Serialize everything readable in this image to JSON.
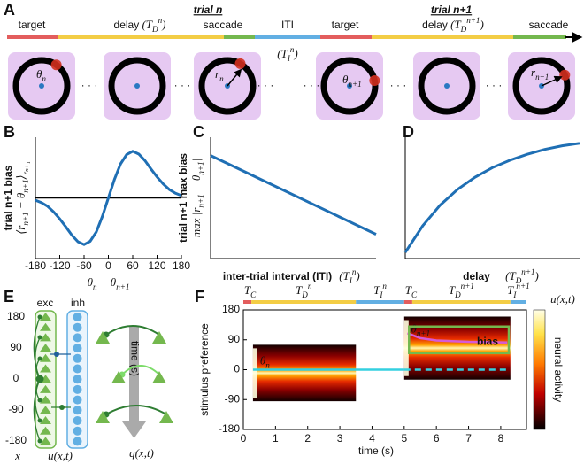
{
  "panel_labels": {
    "a": "A",
    "b": "B",
    "c": "C",
    "d": "D",
    "e": "E",
    "f": "F"
  },
  "panel_a": {
    "trial_labels": [
      "trial n",
      "trial n+1"
    ],
    "segments": [
      {
        "label": "target",
        "color": "#e35d5d"
      },
      {
        "label": "delay",
        "math": [
          {
            "t": " (T",
            "sub": "D",
            "sup": "n"
          },
          {
            "t": ")"
          }
        ],
        "color": "#f3cd45"
      },
      {
        "label": "saccade",
        "color": "#74b84e"
      },
      {
        "label": "ITI",
        "math_below": [
          {
            "t": "(T",
            "sub": "I",
            "sup": "n"
          },
          {
            "t": ")"
          }
        ],
        "color": "#62afe3"
      },
      {
        "label": "target",
        "color": "#e35d5d"
      },
      {
        "label": "delay",
        "math": [
          {
            "t": " (T",
            "sub": "D",
            "sup": "n+1"
          },
          {
            "t": ")"
          }
        ],
        "color": "#f3cd45"
      },
      {
        "label": "saccade",
        "color": "#74b84e"
      }
    ],
    "ellipsis": "· · ·",
    "theta_n": [
      {
        "t": "θ",
        "sub": "n"
      }
    ],
    "r_n": [
      {
        "t": "r",
        "sub": "n"
      }
    ],
    "theta_n1": [
      {
        "t": "θ",
        "sub": "n+1"
      }
    ],
    "r_n1": [
      {
        "t": "r",
        "sub": "n+1"
      }
    ]
  },
  "charts": {
    "b": {
      "type": "line",
      "ylabel": "trial n+1 bias",
      "ylabel_math": [
        {
          "t": "⟨r",
          "sub": "n+1"
        },
        {
          "t": " − θ",
          "sub": "n+1"
        },
        {
          "t": "⟩",
          "sub": "rₙ₊₁"
        }
      ],
      "xlabel_math": [
        {
          "t": "θ",
          "sub": "n"
        },
        {
          "t": " − θ",
          "sub": "n+1"
        }
      ],
      "x": [
        -180,
        -165,
        -150,
        -135,
        -120,
        -105,
        -90,
        -75,
        -60,
        -45,
        -30,
        -15,
        0,
        15,
        30,
        45,
        60,
        75,
        90,
        105,
        120,
        135,
        150,
        165,
        180
      ],
      "values": [
        -0.05,
        -0.1,
        -0.18,
        -0.3,
        -0.45,
        -0.62,
        -0.8,
        -0.94,
        -1,
        -0.93,
        -0.73,
        -0.4,
        0,
        0.4,
        0.73,
        0.93,
        1,
        0.94,
        0.8,
        0.62,
        0.45,
        0.3,
        0.18,
        0.1,
        0.05
      ],
      "color": "#1f6fb4",
      "xlim": [
        -180,
        180
      ],
      "ylim": [
        -1.3,
        1.3
      ],
      "xticks": [
        -180,
        -120,
        -60,
        0,
        60,
        120,
        180
      ]
    },
    "c": {
      "type": "line",
      "ylabel": "trial n+1 max bias",
      "ylabel_math": [
        {
          "t": "max |r",
          "sub": "n+1"
        },
        {
          "t": " − θ",
          "sub": "n+1"
        },
        {
          "t": "|"
        }
      ],
      "xlabel": "inter-trial interval (ITI)",
      "xlabel_math": [
        {
          "t": "(T",
          "sub": "I",
          "sup": "n"
        },
        {
          "t": ")"
        }
      ],
      "x": [
        0,
        1
      ],
      "values": [
        0.85,
        0.2
      ],
      "color": "#1f6fb4",
      "xlim": [
        0,
        1
      ],
      "ylim": [
        0,
        1
      ]
    },
    "d": {
      "type": "line",
      "xlabel": "delay",
      "xlabel_math": [
        {
          "t": "(T",
          "sub": "D",
          "sup": "n+1"
        },
        {
          "t": ")"
        }
      ],
      "x": [
        0,
        0.1,
        0.2,
        0.3,
        0.4,
        0.5,
        0.6,
        0.7,
        0.8,
        0.9,
        1
      ],
      "values": [
        0.05,
        0.27,
        0.44,
        0.57,
        0.67,
        0.75,
        0.81,
        0.86,
        0.9,
        0.93,
        0.95
      ],
      "color": "#1f6fb4",
      "xlim": [
        0,
        1
      ],
      "ylim": [
        0,
        1
      ]
    }
  },
  "panel_e": {
    "exc": "exc",
    "inh": "inh",
    "yticks": [
      180,
      90,
      0,
      -90,
      -180
    ],
    "x_label": "x",
    "u_label": "u(x,t)",
    "time_label": "time (s)",
    "q_label": "q(x,t)"
  },
  "panel_f": {
    "xlim": [
      0,
      8.8
    ],
    "ylim": [
      -180,
      180
    ],
    "xticks": [
      0,
      1,
      2,
      3,
      4,
      5,
      6,
      7,
      8
    ],
    "yticks": [
      180,
      90,
      0,
      -90,
      -180
    ],
    "xlabel": "time (s)",
    "ylabel": "stimulus preference",
    "colorbar_label": "neural activity",
    "colorbar_math": [
      {
        "t": "u(x,t)"
      }
    ],
    "timeline": [
      {
        "start": 0,
        "end": 0.25,
        "color": "#e35d5d",
        "math": [
          {
            "t": "T",
            "sub": "C"
          }
        ]
      },
      {
        "start": 0.25,
        "end": 3.5,
        "color": "#f3cd45",
        "math": [
          {
            "t": "T",
            "sub": "D",
            "sup": "n"
          }
        ]
      },
      {
        "start": 3.5,
        "end": 5,
        "color": "#62afe3",
        "math": [
          {
            "t": "T",
            "sub": "I",
            "sup": "n"
          }
        ]
      },
      {
        "start": 5,
        "end": 5.25,
        "color": "#e35d5d",
        "math": [
          {
            "t": "T",
            "sub": "C"
          }
        ]
      },
      {
        "start": 5.25,
        "end": 8.3,
        "color": "#f3cd45",
        "math": [
          {
            "t": "T",
            "sub": "D",
            "sup": "n+1"
          }
        ]
      },
      {
        "start": 8.3,
        "end": 8.8,
        "color": "#62afe3",
        "math": [
          {
            "t": "T",
            "sub": "I",
            "sup": "n+1"
          }
        ]
      }
    ],
    "bumps": [
      {
        "start": 0.3,
        "end": 3.5,
        "center": -10,
        "halfwidth": 85
      },
      {
        "start": 5,
        "end": 8.3,
        "center": 65,
        "halfwidth": 95
      }
    ],
    "theta_n_line": {
      "start": 0.3,
      "end": 8.3,
      "value": 0,
      "dashed_from": 5,
      "color": "#35d0e0"
    },
    "theta_n_label": [
      {
        "t": "θ",
        "sub": "n"
      }
    ],
    "theta_n1_curve": {
      "t": [
        5.1,
        5.5,
        6,
        7,
        8.2
      ],
      "values": [
        110,
        95,
        88,
        84,
        82
      ],
      "color": "#d65ad6"
    },
    "theta_n1_label": [
      {
        "t": "θ",
        "sub": "n+1"
      }
    ],
    "bias_box": {
      "start": 5.15,
      "end": 8.25,
      "top": 130,
      "bottom": 50,
      "color": "#74b84e"
    },
    "bias_label": "bias"
  }
}
